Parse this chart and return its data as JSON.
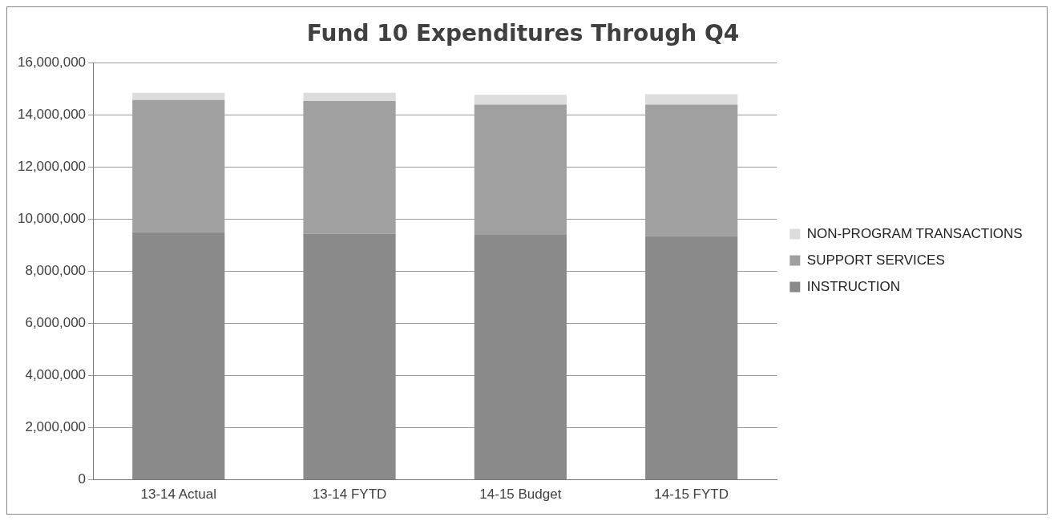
{
  "chart_data": {
    "type": "bar",
    "title": "Fund 10 Expenditures Through Q4",
    "categories": [
      "13-14 Actual",
      "13-14 FYTD",
      "14-15 Budget",
      "14-15 FYTD"
    ],
    "stacked": true,
    "series": [
      {
        "name": "INSTRUCTION",
        "color": "#8a8a8a",
        "values": [
          9500000,
          9450000,
          9400000,
          9350000
        ]
      },
      {
        "name": "SUPPORT SERVICES",
        "color": "#a0a0a0",
        "values": [
          5080000,
          5090000,
          5000000,
          5050000
        ]
      },
      {
        "name": "NON-PROGRAM TRANSACTIONS",
        "color": "#dcdcdc",
        "values": [
          280000,
          320000,
          380000,
          400000
        ]
      }
    ],
    "ylim": [
      0,
      16000000
    ],
    "yticks": [
      {
        "value": 0,
        "label": "0"
      },
      {
        "value": 2000000,
        "label": "2,000,000"
      },
      {
        "value": 4000000,
        "label": "4,000,000"
      },
      {
        "value": 6000000,
        "label": "6,000,000"
      },
      {
        "value": 8000000,
        "label": "8,000,000"
      },
      {
        "value": 10000000,
        "label": "10,000,000"
      },
      {
        "value": 12000000,
        "label": "12,000,000"
      },
      {
        "value": 14000000,
        "label": "14,000,000"
      },
      {
        "value": 16000000,
        "label": "16,000,000"
      }
    ],
    "grid": "y",
    "legend": "right"
  }
}
